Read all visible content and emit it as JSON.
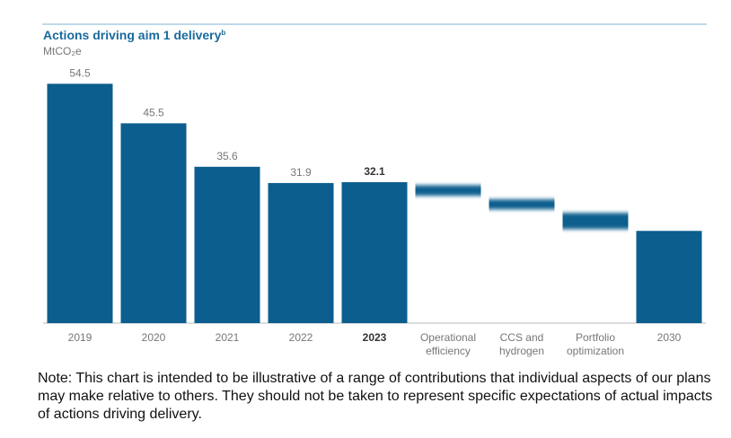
{
  "chart_data": {
    "type": "waterfall",
    "title": "Actions driving aim 1 delivery",
    "title_superscript": "b",
    "subtitle": "MtCO₂e",
    "categories": [
      [
        "2019"
      ],
      [
        "2020"
      ],
      [
        "2021"
      ],
      [
        "2022"
      ],
      [
        "2023"
      ],
      [
        "Operational",
        "efficiency"
      ],
      [
        "CCS and",
        "hydrogen"
      ],
      [
        "Portfolio",
        "optimization"
      ],
      [
        "2030"
      ]
    ],
    "values": [
      54.5,
      45.5,
      35.6,
      31.9,
      32.1,
      null,
      null,
      null,
      21.0
    ],
    "show_value": [
      true,
      true,
      true,
      true,
      true,
      false,
      false,
      false,
      false
    ],
    "highlight_index": 4,
    "ranges": [
      null,
      null,
      null,
      null,
      null,
      [
        29.0,
        31.4
      ],
      [
        25.9,
        28.2
      ],
      [
        21.4,
        25.1
      ],
      null
    ],
    "color": "#0b5e8e",
    "ylim": [
      0,
      56
    ],
    "note": "Note: This chart is intended to be illustrative of a range of contributions that individual aspects of our plans may make relative to others. They should not be taken to represent specific expectations of actual impacts of actions driving delivery."
  }
}
